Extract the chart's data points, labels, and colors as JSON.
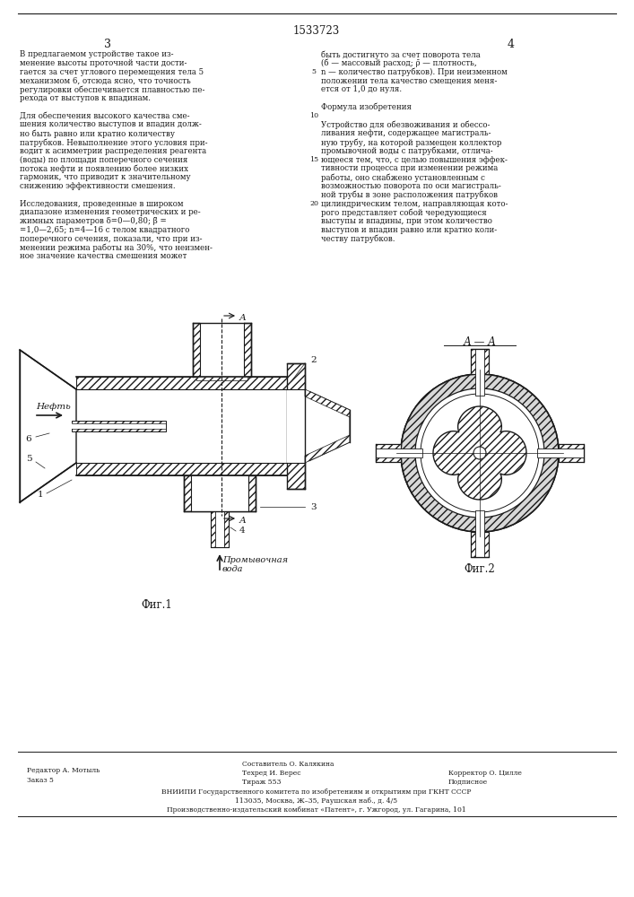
{
  "page_width": 7.07,
  "page_height": 10.0,
  "bg_color": "#ffffff",
  "patent_number": "1533723",
  "page_numbers": [
    "3",
    "4"
  ],
  "left_column_text": [
    "В предлагаемом устройстве такое из-",
    "менение высоты проточной части дости-",
    "гается за счет углового перемещения тела 5",
    "механизмом 6, отсюда ясно, что точность",
    "регулировки обеспечивается плавностью пе-",
    "рехода от выступов к впадинам.",
    "",
    "Для обеспечения высокого качества сме-",
    "шения количество выступов и впадин долж-",
    "но быть равно или кратно количеству",
    "патрубков. Невыполнение этого условия при-",
    "водит к асимметрии распределения реагента",
    "(воды) по площади поперечного сечения",
    "потока нефти и появлению более низких",
    "гармоник, что приводит к значительному",
    "снижению эффективности смешения.",
    "",
    "Исследования, проведенные в широком",
    "диапазоне изменения геометрических и ре-",
    "жимных параметров δ=0—0,80; β̄ =",
    "=1,0—2,65; n=4—16 с телом квадратного",
    "поперечного сечения, показали, что при из-",
    "менении режима работы на 30%, что неизмен-",
    "ное значение качества смешения может"
  ],
  "right_column_text": [
    "быть достигнуто за счет поворота тела",
    "(б — массовый расход; ρ̄ — плотность,",
    "n — количество патрубков). При неизменном",
    "положении тела качество смещения меня-",
    "ется от 1,0 до нуля.",
    "",
    "Формула изобретения",
    "",
    "Устройство для обезвоживания и обессо-",
    "ливания нефти, содержащее магистраль-",
    "ную трубу, на которой размещен коллектор",
    "промывочной воды с патрубками, отлича-",
    "ющееся тем, что, с целью повышения эффек-",
    "тивности процесса при изменении режима",
    "работы, оно снабжено установленным с",
    "возможностью поворота по оси магистраль-",
    "ной трубы в зоне расположения патрубков",
    "цилиндрическим телом, направляющая кото-",
    "рого представляет собой чередующиеся",
    "выступы и впадины, при этом количество",
    "выступов и впадин равно или кратно коли-",
    "честву патрубков."
  ],
  "fig1_label": "Фиг.1",
  "fig2_label": "Фиг.2",
  "oil_label": "Нефть",
  "water_label": "Промывочная\nвода",
  "section_label": "А — А",
  "text_color": "#1a1a1a",
  "line_color": "#1a1a1a",
  "font_size_body": 6.2,
  "font_size_header": 8.5,
  "font_size_footer": 5.5,
  "font_size_fig": 8.5,
  "font_size_page": 9.0,
  "footer_col1": [
    [
      "Редактор А. Мотыль",
      30,
      855
    ],
    [
      "Заказ 5",
      30,
      866
    ]
  ],
  "footer_col2": [
    [
      "Составитель О. Калякина",
      270,
      848
    ],
    [
      "Техред И. Верес",
      270,
      858
    ],
    [
      "Тираж 553",
      270,
      868
    ]
  ],
  "footer_col3": [
    [
      "Корректор О. Цилле",
      500,
      858
    ],
    [
      "Подписное",
      500,
      868
    ]
  ],
  "footer_full": [
    [
      "ВНИИПИ Государственного комитета по изобретениям и открытиям при ГКНТ СССР",
      353,
      879
    ],
    [
      "113035, Москва, Ж–35, Раушская наб., д. 4/5",
      353,
      889
    ],
    [
      "Производственно-издательский комбинат «Патент», г. Ужгород, ул. Гагарина, 101",
      353,
      899
    ]
  ]
}
